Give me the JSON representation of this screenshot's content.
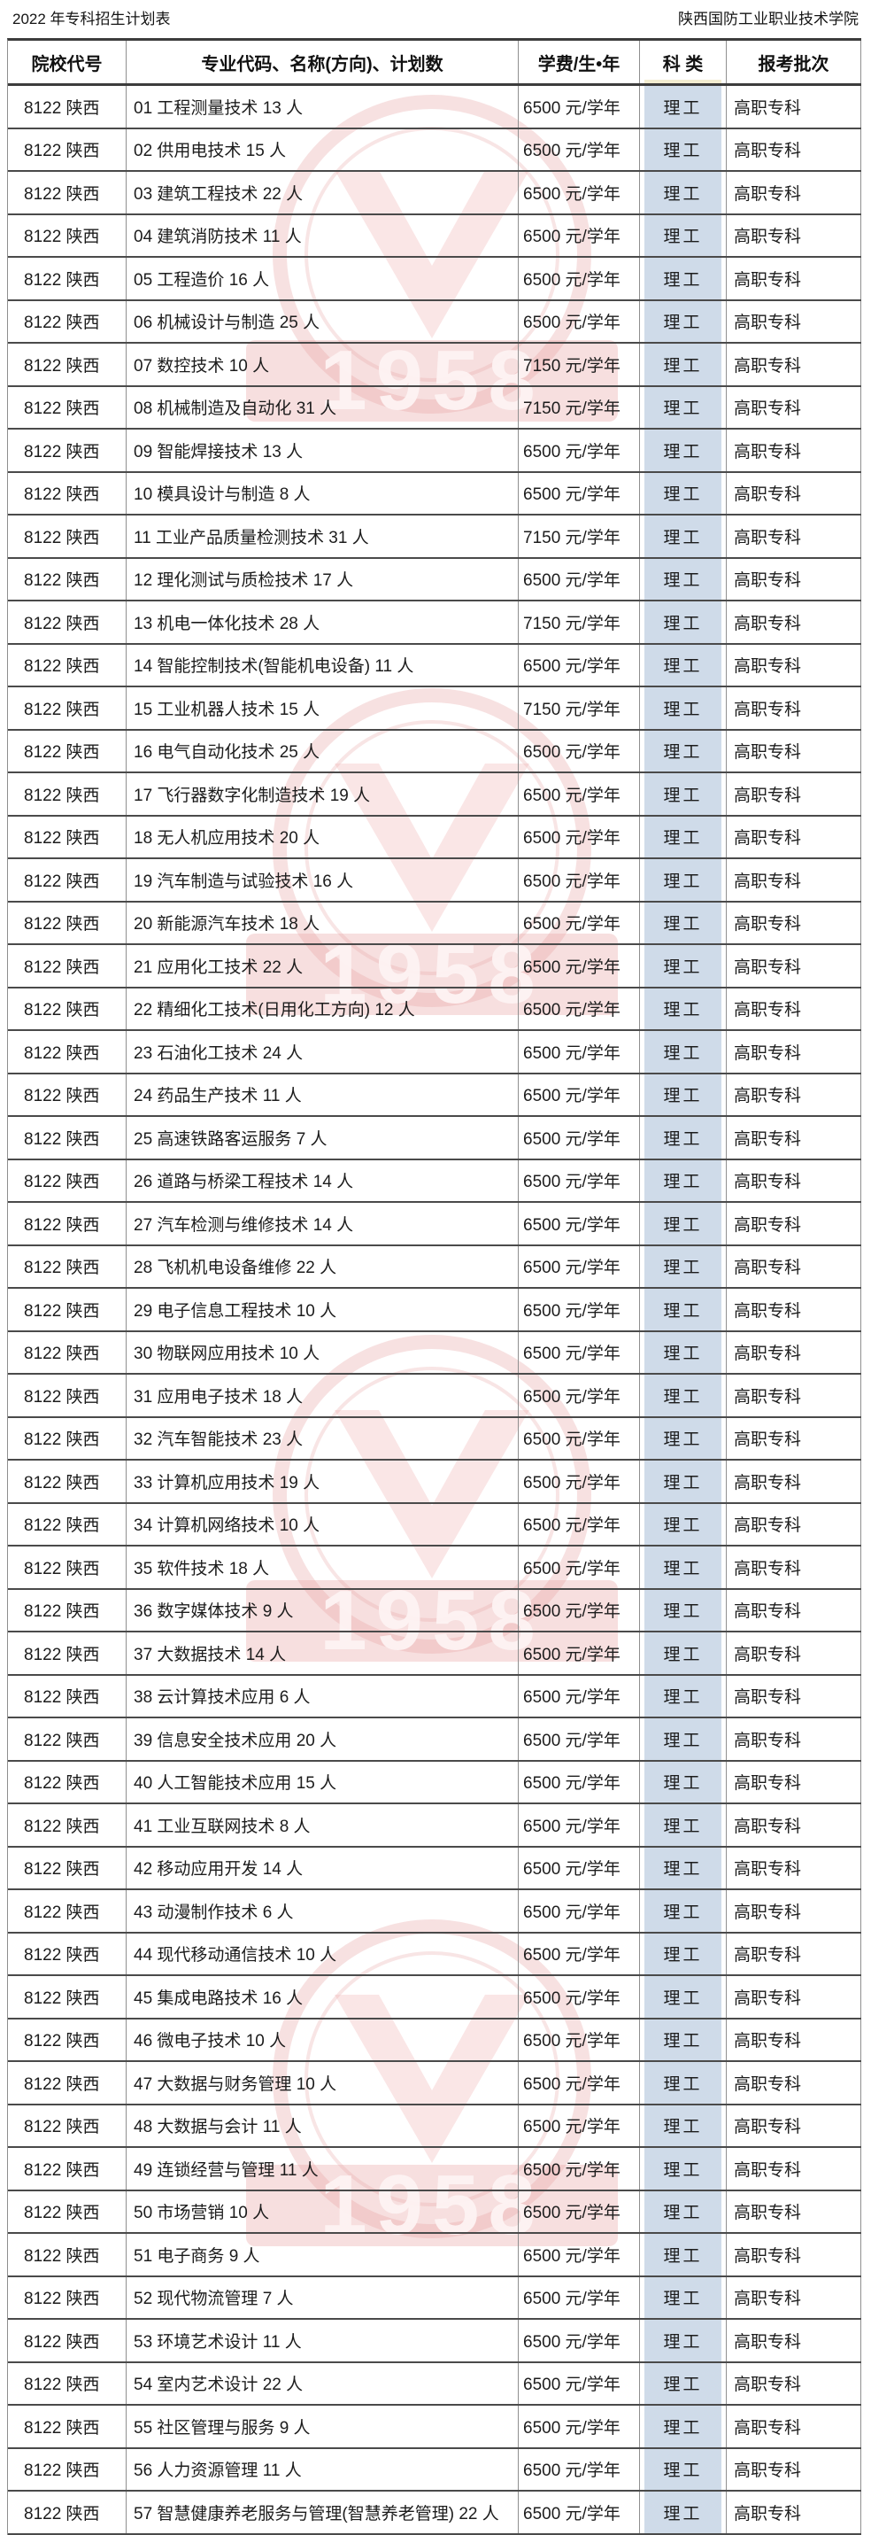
{
  "title_left": "2022 年专科招生计划表",
  "title_right": "陕西国防工业职业技术学院",
  "columns": [
    "院校代号",
    "专业代码、名称(方向)、计划数",
    "学费/生•年",
    "科 类",
    "报考批次"
  ],
  "colors": {
    "category_highlight": "#cfdbe9",
    "header_strip_yellow": "#f2ecd0",
    "row_border": "#4a4a4a",
    "watermark_pink": "#e79c9c"
  },
  "watermark": {
    "text": "1958"
  },
  "rows": [
    [
      "8122 陕西",
      "01 工程测量技术 13 人",
      "6500 元/学年",
      "理工",
      "高职专科"
    ],
    [
      "8122 陕西",
      "02 供用电技术 15 人",
      "6500 元/学年",
      "理工",
      "高职专科"
    ],
    [
      "8122 陕西",
      "03 建筑工程技术 22 人",
      "6500 元/学年",
      "理工",
      "高职专科"
    ],
    [
      "8122 陕西",
      "04 建筑消防技术 11 人",
      "6500 元/学年",
      "理工",
      "高职专科"
    ],
    [
      "8122 陕西",
      "05 工程造价 16 人",
      "6500 元/学年",
      "理工",
      "高职专科"
    ],
    [
      "8122 陕西",
      "06 机械设计与制造 25 人",
      "6500 元/学年",
      "理工",
      "高职专科"
    ],
    [
      "8122 陕西",
      "07 数控技术 10 人",
      "7150 元/学年",
      "理工",
      "高职专科"
    ],
    [
      "8122 陕西",
      "08 机械制造及自动化 31 人",
      "7150 元/学年",
      "理工",
      "高职专科"
    ],
    [
      "8122 陕西",
      "09 智能焊接技术 13 人",
      "6500 元/学年",
      "理工",
      "高职专科"
    ],
    [
      "8122 陕西",
      "10 模具设计与制造 8 人",
      "6500 元/学年",
      "理工",
      "高职专科"
    ],
    [
      "8122 陕西",
      "11 工业产品质量检测技术 31 人",
      "7150 元/学年",
      "理工",
      "高职专科"
    ],
    [
      "8122 陕西",
      "12 理化测试与质检技术 17 人",
      "6500 元/学年",
      "理工",
      "高职专科"
    ],
    [
      "8122 陕西",
      "13 机电一体化技术 28 人",
      "7150 元/学年",
      "理工",
      "高职专科"
    ],
    [
      "8122 陕西",
      "14 智能控制技术(智能机电设备) 11 人",
      "6500 元/学年",
      "理工",
      "高职专科"
    ],
    [
      "8122 陕西",
      "15 工业机器人技术 15 人",
      "7150 元/学年",
      "理工",
      "高职专科"
    ],
    [
      "8122 陕西",
      "16 电气自动化技术 25 人",
      "6500 元/学年",
      "理工",
      "高职专科"
    ],
    [
      "8122 陕西",
      "17 飞行器数字化制造技术 19 人",
      "6500 元/学年",
      "理工",
      "高职专科"
    ],
    [
      "8122 陕西",
      "18 无人机应用技术 20 人",
      "6500 元/学年",
      "理工",
      "高职专科"
    ],
    [
      "8122 陕西",
      "19 汽车制造与试验技术 16 人",
      "6500 元/学年",
      "理工",
      "高职专科"
    ],
    [
      "8122 陕西",
      "20 新能源汽车技术 18 人",
      "6500 元/学年",
      "理工",
      "高职专科"
    ],
    [
      "8122 陕西",
      "21 应用化工技术 22 人",
      "6500 元/学年",
      "理工",
      "高职专科"
    ],
    [
      "8122 陕西",
      "22 精细化工技术(日用化工方向) 12 人",
      "6500 元/学年",
      "理工",
      "高职专科"
    ],
    [
      "8122 陕西",
      "23 石油化工技术 24 人",
      "6500 元/学年",
      "理工",
      "高职专科"
    ],
    [
      "8122 陕西",
      "24 药品生产技术 11 人",
      "6500 元/学年",
      "理工",
      "高职专科"
    ],
    [
      "8122 陕西",
      "25 高速铁路客运服务 7 人",
      "6500 元/学年",
      "理工",
      "高职专科"
    ],
    [
      "8122 陕西",
      "26 道路与桥梁工程技术 14 人",
      "6500 元/学年",
      "理工",
      "高职专科"
    ],
    [
      "8122 陕西",
      "27 汽车检测与维修技术 14 人",
      "6500 元/学年",
      "理工",
      "高职专科"
    ],
    [
      "8122 陕西",
      "28 飞机机电设备维修 22 人",
      "6500 元/学年",
      "理工",
      "高职专科"
    ],
    [
      "8122 陕西",
      "29 电子信息工程技术 10 人",
      "6500 元/学年",
      "理工",
      "高职专科"
    ],
    [
      "8122 陕西",
      "30 物联网应用技术 10 人",
      "6500 元/学年",
      "理工",
      "高职专科"
    ],
    [
      "8122 陕西",
      "31 应用电子技术 18 人",
      "6500 元/学年",
      "理工",
      "高职专科"
    ],
    [
      "8122 陕西",
      "32 汽车智能技术 23 人",
      "6500 元/学年",
      "理工",
      "高职专科"
    ],
    [
      "8122 陕西",
      "33 计算机应用技术 19 人",
      "6500 元/学年",
      "理工",
      "高职专科"
    ],
    [
      "8122 陕西",
      "34 计算机网络技术 10 人",
      "6500 元/学年",
      "理工",
      "高职专科"
    ],
    [
      "8122 陕西",
      "35 软件技术 18 人",
      "6500 元/学年",
      "理工",
      "高职专科"
    ],
    [
      "8122 陕西",
      "36 数字媒体技术 9 人",
      "6500 元/学年",
      "理工",
      "高职专科"
    ],
    [
      "8122 陕西",
      "37 大数据技术 14 人",
      "6500 元/学年",
      "理工",
      "高职专科"
    ],
    [
      "8122 陕西",
      "38 云计算技术应用 6 人",
      "6500 元/学年",
      "理工",
      "高职专科"
    ],
    [
      "8122 陕西",
      "39 信息安全技术应用 20 人",
      "6500 元/学年",
      "理工",
      "高职专科"
    ],
    [
      "8122 陕西",
      "40 人工智能技术应用 15 人",
      "6500 元/学年",
      "理工",
      "高职专科"
    ],
    [
      "8122 陕西",
      "41 工业互联网技术 8 人",
      "6500 元/学年",
      "理工",
      "高职专科"
    ],
    [
      "8122 陕西",
      "42 移动应用开发 14 人",
      "6500 元/学年",
      "理工",
      "高职专科"
    ],
    [
      "8122 陕西",
      "43 动漫制作技术 6 人",
      "6500 元/学年",
      "理工",
      "高职专科"
    ],
    [
      "8122 陕西",
      "44 现代移动通信技术 10 人",
      "6500 元/学年",
      "理工",
      "高职专科"
    ],
    [
      "8122 陕西",
      "45 集成电路技术 16 人",
      "6500 元/学年",
      "理工",
      "高职专科"
    ],
    [
      "8122 陕西",
      "46 微电子技术 10 人",
      "6500 元/学年",
      "理工",
      "高职专科"
    ],
    [
      "8122 陕西",
      "47 大数据与财务管理 10 人",
      "6500 元/学年",
      "理工",
      "高职专科"
    ],
    [
      "8122 陕西",
      "48 大数据与会计 11 人",
      "6500 元/学年",
      "理工",
      "高职专科"
    ],
    [
      "8122 陕西",
      "49 连锁经营与管理 11 人",
      "6500 元/学年",
      "理工",
      "高职专科"
    ],
    [
      "8122 陕西",
      "50 市场营销 10 人",
      "6500 元/学年",
      "理工",
      "高职专科"
    ],
    [
      "8122 陕西",
      "51 电子商务 9 人",
      "6500 元/学年",
      "理工",
      "高职专科"
    ],
    [
      "8122 陕西",
      "52 现代物流管理 7 人",
      "6500 元/学年",
      "理工",
      "高职专科"
    ],
    [
      "8122 陕西",
      "53 环境艺术设计 11 人",
      "6500 元/学年",
      "理工",
      "高职专科"
    ],
    [
      "8122 陕西",
      "54 室内艺术设计 22 人",
      "6500 元/学年",
      "理工",
      "高职专科"
    ],
    [
      "8122 陕西",
      "55 社区管理与服务 9 人",
      "6500 元/学年",
      "理工",
      "高职专科"
    ],
    [
      "8122 陕西",
      "56 人力资源管理 11 人",
      "6500 元/学年",
      "理工",
      "高职专科"
    ],
    [
      "8122 陕西",
      "57 智慧健康养老服务与管理(智慧养老管理) 22 人",
      "6500 元/学年",
      "理工",
      "高职专科"
    ]
  ]
}
